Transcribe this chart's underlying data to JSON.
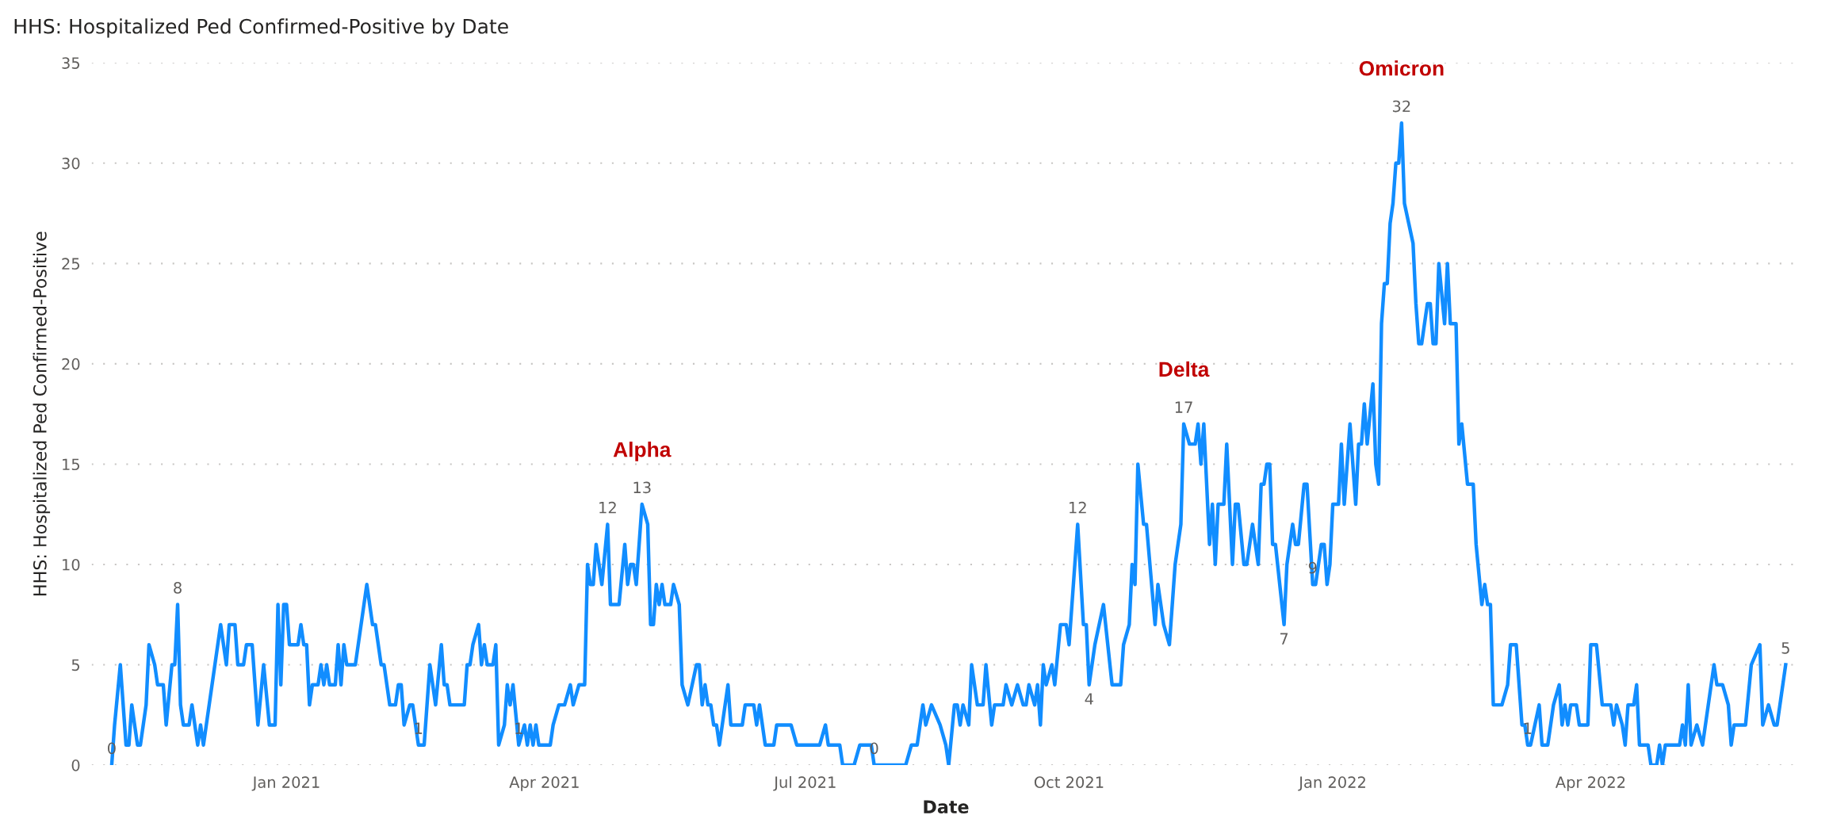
{
  "chart_data": {
    "type": "line",
    "title": "HHS: Hospitalized Ped Confirmed-Positive by Date",
    "xlabel": "Date",
    "ylabel": "HHS: Hospitalized Ped Confirmed-Positive",
    "x": [
      "2020-11-01",
      "2020-11-02",
      "2020-11-04",
      "2020-11-06",
      "2020-11-07",
      "2020-11-08",
      "2020-11-10",
      "2020-11-11",
      "2020-11-13",
      "2020-11-14",
      "2020-11-16",
      "2020-11-17",
      "2020-11-19",
      "2020-11-20",
      "2020-11-22",
      "2020-11-23",
      "2020-11-24",
      "2020-11-25",
      "2020-11-26",
      "2020-11-28",
      "2020-11-29",
      "2020-12-01",
      "2020-12-02",
      "2020-12-03",
      "2020-12-09",
      "2020-12-11",
      "2020-12-12",
      "2020-12-14",
      "2020-12-15",
      "2020-12-17",
      "2020-12-18",
      "2020-12-20",
      "2020-12-22",
      "2020-12-24",
      "2020-12-26",
      "2020-12-28",
      "2020-12-29",
      "2020-12-30",
      "2020-12-31",
      "2021-01-01",
      "2021-01-02",
      "2021-01-05",
      "2021-01-06",
      "2021-01-07",
      "2021-01-08",
      "2021-01-09",
      "2021-01-10",
      "2021-01-12",
      "2021-01-13",
      "2021-01-14",
      "2021-01-15",
      "2021-01-16",
      "2021-01-18",
      "2021-01-19",
      "2021-01-20",
      "2021-01-21",
      "2021-01-22",
      "2021-01-25",
      "2021-01-29",
      "2021-01-31",
      "2021-02-01",
      "2021-02-03",
      "2021-02-04",
      "2021-02-06",
      "2021-02-08",
      "2021-02-09",
      "2021-02-10",
      "2021-02-11",
      "2021-02-13",
      "2021-02-14",
      "2021-02-16",
      "2021-02-18",
      "2021-02-20",
      "2021-02-22",
      "2021-02-24",
      "2021-02-25",
      "2021-02-26",
      "2021-02-27",
      "2021-03-04",
      "2021-03-05",
      "2021-03-06",
      "2021-03-07",
      "2021-03-09",
      "2021-03-10",
      "2021-03-11",
      "2021-03-12",
      "2021-03-14",
      "2021-03-15",
      "2021-03-16",
      "2021-03-18",
      "2021-03-19",
      "2021-03-20",
      "2021-03-21",
      "2021-03-23",
      "2021-03-25",
      "2021-03-26",
      "2021-03-27",
      "2021-03-28",
      "2021-03-29",
      "2021-03-30",
      "2021-04-03",
      "2021-04-04",
      "2021-04-06",
      "2021-04-08",
      "2021-04-10",
      "2021-04-11",
      "2021-04-13",
      "2021-04-15",
      "2021-04-16",
      "2021-04-17",
      "2021-04-18",
      "2021-04-19",
      "2021-04-21",
      "2021-04-23",
      "2021-04-24",
      "2021-04-27",
      "2021-04-29",
      "2021-04-30",
      "2021-05-01",
      "2021-05-02",
      "2021-05-03",
      "2021-05-05",
      "2021-05-07",
      "2021-05-08",
      "2021-05-09",
      "2021-05-10",
      "2021-05-11",
      "2021-05-12",
      "2021-05-13",
      "2021-05-15",
      "2021-05-16",
      "2021-05-18",
      "2021-05-19",
      "2021-05-21",
      "2021-05-24",
      "2021-05-25",
      "2021-05-26",
      "2021-05-27",
      "2021-05-28",
      "2021-05-29",
      "2021-05-30",
      "2021-05-31",
      "2021-06-01",
      "2021-06-04",
      "2021-06-05",
      "2021-06-09",
      "2021-06-10",
      "2021-06-13",
      "2021-06-14",
      "2021-06-15",
      "2021-06-17",
      "2021-06-20",
      "2021-06-21",
      "2021-06-26",
      "2021-06-28",
      "2021-07-06",
      "2021-07-08",
      "2021-07-09",
      "2021-07-13",
      "2021-07-14",
      "2021-07-18",
      "2021-07-20",
      "2021-07-24",
      "2021-07-25",
      "2021-08-05",
      "2021-08-07",
      "2021-08-09",
      "2021-08-11",
      "2021-08-12",
      "2021-08-14",
      "2021-08-17",
      "2021-08-19",
      "2021-08-20",
      "2021-08-22",
      "2021-08-23",
      "2021-08-24",
      "2021-08-25",
      "2021-08-27",
      "2021-08-28",
      "2021-08-30",
      "2021-09-01",
      "2021-09-02",
      "2021-09-04",
      "2021-09-05",
      "2021-09-08",
      "2021-09-09",
      "2021-09-11",
      "2021-09-13",
      "2021-09-15",
      "2021-09-16",
      "2021-09-17",
      "2021-09-19",
      "2021-09-20",
      "2021-09-21",
      "2021-09-22",
      "2021-09-23",
      "2021-09-25",
      "2021-09-26",
      "2021-09-28",
      "2021-09-30",
      "2021-10-01",
      "2021-10-04",
      "2021-10-06",
      "2021-10-07",
      "2021-10-08",
      "2021-10-10",
      "2021-10-13",
      "2021-10-16",
      "2021-10-19",
      "2021-10-20",
      "2021-10-22",
      "2021-10-23",
      "2021-10-24",
      "2021-10-25",
      "2021-10-27",
      "2021-10-28",
      "2021-10-31",
      "2021-11-01",
      "2021-11-03",
      "2021-11-05",
      "2021-11-07",
      "2021-11-09",
      "2021-11-10",
      "2021-11-12",
      "2021-11-14",
      "2021-11-15",
      "2021-11-16",
      "2021-11-17",
      "2021-11-19",
      "2021-11-20",
      "2021-11-21",
      "2021-11-22",
      "2021-11-24",
      "2021-11-25",
      "2021-11-27",
      "2021-11-28",
      "2021-11-29",
      "2021-12-01",
      "2021-12-02",
      "2021-12-04",
      "2021-12-06",
      "2021-12-07",
      "2021-12-08",
      "2021-12-09",
      "2021-12-10",
      "2021-12-11",
      "2021-12-12",
      "2021-12-15",
      "2021-12-16",
      "2021-12-18",
      "2021-12-19",
      "2021-12-20",
      "2021-12-22",
      "2021-12-23",
      "2021-12-25",
      "2021-12-26",
      "2021-12-28",
      "2021-12-29",
      "2021-12-30",
      "2021-12-31",
      "2022-01-01",
      "2022-01-02",
      "2022-01-03",
      "2022-01-04",
      "2022-01-05",
      "2022-01-07",
      "2022-01-09",
      "2022-01-10",
      "2022-01-11",
      "2022-01-12",
      "2022-01-13",
      "2022-01-15",
      "2022-01-16",
      "2022-01-17",
      "2022-01-18",
      "2022-01-19",
      "2022-01-20",
      "2022-01-21",
      "2022-01-22",
      "2022-01-23",
      "2022-01-24",
      "2022-01-25",
      "2022-01-26",
      "2022-01-29",
      "2022-01-30",
      "2022-01-31",
      "2022-02-01",
      "2022-02-03",
      "2022-02-04",
      "2022-02-05",
      "2022-02-06",
      "2022-02-07",
      "2022-02-09",
      "2022-02-10",
      "2022-02-11",
      "2022-02-13",
      "2022-02-14",
      "2022-02-15",
      "2022-02-17",
      "2022-02-19",
      "2022-02-20",
      "2022-02-22",
      "2022-02-23",
      "2022-02-24",
      "2022-02-25",
      "2022-02-26",
      "2022-03-01",
      "2022-03-03",
      "2022-03-04",
      "2022-03-06",
      "2022-03-08",
      "2022-03-09",
      "2022-03-10",
      "2022-03-11",
      "2022-03-14",
      "2022-03-15",
      "2022-03-17",
      "2022-03-19",
      "2022-03-21",
      "2022-03-22",
      "2022-03-23",
      "2022-03-24",
      "2022-03-25",
      "2022-03-27",
      "2022-03-28",
      "2022-03-31",
      "2022-04-01",
      "2022-04-03",
      "2022-04-05",
      "2022-04-08",
      "2022-04-09",
      "2022-04-10",
      "2022-04-12",
      "2022-04-13",
      "2022-04-14",
      "2022-04-16",
      "2022-04-17",
      "2022-04-18",
      "2022-04-21",
      "2022-04-22",
      "2022-04-24",
      "2022-04-25",
      "2022-04-26",
      "2022-04-27",
      "2022-05-02",
      "2022-05-03",
      "2022-05-04",
      "2022-05-05",
      "2022-05-06",
      "2022-05-08",
      "2022-05-10",
      "2022-05-14",
      "2022-05-15",
      "2022-05-17",
      "2022-05-19",
      "2022-05-20",
      "2022-05-21",
      "2022-05-25",
      "2022-05-27",
      "2022-05-30",
      "2022-05-31",
      "2022-06-02",
      "2022-06-04",
      "2022-06-05",
      "2022-06-08"
    ],
    "series": [
      {
        "color": "#118dff",
        "values": [
          0,
          2,
          5,
          1,
          1,
          3,
          1,
          1,
          3,
          6,
          5,
          4,
          4,
          2,
          5,
          5,
          8,
          3,
          2,
          2,
          3,
          1,
          2,
          1,
          7,
          5,
          7,
          7,
          5,
          5,
          6,
          6,
          2,
          5,
          2,
          2,
          8,
          4,
          8,
          8,
          6,
          6,
          7,
          6,
          6,
          3,
          4,
          4,
          5,
          4,
          5,
          4,
          4,
          6,
          4,
          6,
          5,
          5,
          9,
          7,
          7,
          5,
          5,
          3,
          3,
          4,
          4,
          2,
          3,
          3,
          1,
          1,
          5,
          3,
          6,
          4,
          4,
          3,
          3,
          5,
          5,
          6,
          7,
          5,
          6,
          5,
          5,
          6,
          1,
          2,
          4,
          3,
          4,
          1,
          2,
          1,
          2,
          1,
          2,
          1,
          1,
          2,
          3,
          3,
          4,
          3,
          4,
          4,
          10,
          9,
          9,
          11,
          9,
          12,
          8,
          8,
          11,
          9,
          10,
          10,
          9,
          13,
          12,
          7,
          7,
          9,
          8,
          9,
          8,
          8,
          9,
          8,
          4,
          3,
          5,
          5,
          3,
          4,
          3,
          3,
          2,
          2,
          1,
          4,
          2,
          2,
          3,
          3,
          2,
          3,
          1,
          1,
          2,
          2,
          1,
          1,
          2,
          1,
          1,
          0,
          0,
          1,
          1,
          0,
          0,
          1,
          1,
          3,
          2,
          3,
          2,
          1,
          0,
          3,
          3,
          2,
          3,
          2,
          5,
          3,
          3,
          5,
          2,
          3,
          3,
          4,
          3,
          4,
          3,
          3,
          4,
          3,
          4,
          2,
          5,
          4,
          5,
          4,
          7,
          7,
          6,
          12,
          7,
          7,
          4,
          6,
          8,
          4,
          4,
          6,
          7,
          10,
          9,
          15,
          12,
          12,
          7,
          9,
          7,
          6,
          10,
          12,
          17,
          16,
          16,
          17,
          15,
          17,
          11,
          13,
          10,
          13,
          13,
          16,
          10,
          13,
          13,
          10,
          10,
          12,
          10,
          14,
          14,
          15,
          15,
          11,
          11,
          7,
          10,
          12,
          11,
          11,
          14,
          14,
          9,
          9,
          11,
          11,
          9,
          10,
          13,
          13,
          13,
          16,
          13,
          17,
          13,
          16,
          16,
          18,
          16,
          19,
          15,
          14,
          22,
          24,
          24,
          27,
          28,
          30,
          30,
          32,
          28,
          26,
          23,
          21,
          21,
          23,
          23,
          21,
          21,
          25,
          22,
          25,
          22,
          22,
          16,
          17,
          14,
          14,
          11,
          8,
          9,
          8,
          8,
          3,
          3,
          4,
          6,
          6,
          2,
          2,
          1,
          1,
          3,
          1,
          1,
          3,
          4,
          2,
          3,
          2,
          3,
          3,
          2,
          2,
          6,
          6,
          3,
          3,
          2,
          3,
          2,
          1,
          3,
          3,
          4,
          1,
          1,
          0,
          0,
          1,
          0,
          1,
          1,
          2,
          1,
          4,
          1,
          2,
          1,
          5,
          4,
          4,
          3,
          1,
          2,
          2,
          5,
          6,
          2,
          3,
          2,
          2,
          5
        ],
        "value_labels": [
          "0",
          null,
          null,
          null,
          null,
          null,
          null,
          null,
          null,
          null,
          null,
          null,
          null,
          null,
          null,
          null,
          "8",
          null,
          null,
          null,
          null,
          null,
          null,
          null,
          null,
          null,
          null,
          null,
          null,
          null,
          null,
          null,
          null,
          null,
          null,
          null,
          null,
          null,
          null,
          null,
          null,
          null,
          null,
          null,
          null,
          null,
          null,
          null,
          null,
          null,
          null,
          null,
          null,
          null,
          null,
          null,
          null,
          null,
          null,
          null,
          null,
          null,
          null,
          null,
          null,
          null,
          null,
          null,
          null,
          null,
          "1",
          null,
          null,
          null,
          null,
          null,
          null,
          null,
          null,
          null,
          null,
          null,
          null,
          null,
          null,
          null,
          null,
          null,
          null,
          null,
          null,
          null,
          null,
          "1",
          null,
          null,
          null,
          null,
          null,
          null,
          null,
          null,
          null,
          null,
          null,
          null,
          null,
          null,
          null,
          null,
          null,
          null,
          null,
          "12",
          null,
          null,
          null,
          null,
          null,
          null,
          null,
          "13",
          null,
          null,
          null,
          null,
          null,
          null,
          null,
          null,
          null,
          null,
          null,
          null,
          null,
          null,
          null,
          null,
          null,
          null,
          null,
          null,
          null,
          null,
          null,
          null,
          null,
          null,
          null,
          null,
          null,
          null,
          null,
          null,
          null,
          null,
          null,
          null,
          null,
          null,
          null,
          null,
          null,
          "0",
          null,
          null,
          null,
          null,
          null,
          null,
          null,
          null,
          null,
          null,
          null,
          null,
          null,
          null,
          null,
          null,
          null,
          null,
          null,
          null,
          null,
          null,
          null,
          null,
          null,
          null,
          null,
          null,
          null,
          null,
          null,
          null,
          null,
          null,
          null,
          null,
          null,
          "12",
          null,
          null,
          "4",
          null,
          null,
          null,
          null,
          null,
          null,
          null,
          null,
          null,
          null,
          null,
          null,
          null,
          null,
          null,
          null,
          null,
          "17",
          null,
          null,
          null,
          null,
          null,
          null,
          null,
          null,
          null,
          null,
          null,
          null,
          null,
          null,
          null,
          null,
          null,
          null,
          null,
          null,
          null,
          null,
          null,
          null,
          "7",
          null,
          null,
          null,
          null,
          null,
          null,
          "9",
          null,
          null,
          null,
          null,
          null,
          null,
          null,
          null,
          null,
          null,
          null,
          null,
          null,
          null,
          null,
          null,
          null,
          null,
          null,
          null,
          null,
          null,
          null,
          null,
          null,
          null,
          "32",
          null,
          null,
          null,
          null,
          null,
          null,
          null,
          null,
          null,
          null,
          null,
          null,
          null,
          null,
          null,
          null,
          null,
          null,
          null,
          null,
          null,
          null,
          null,
          null,
          null,
          null,
          null,
          null,
          null,
          null,
          "1",
          null,
          null,
          null,
          null,
          null,
          null,
          null,
          null,
          null,
          null,
          null,
          null,
          null,
          null,
          null,
          null,
          null,
          null,
          null,
          null,
          null,
          null,
          null,
          null,
          null,
          null,
          null,
          null,
          null,
          null,
          null,
          null,
          null,
          null,
          null,
          null,
          null,
          null,
          null,
          null,
          null,
          null,
          null,
          null,
          null,
          null,
          null,
          null,
          null,
          null,
          null,
          "5"
        ]
      }
    ],
    "annotations": [
      {
        "text": "Alpha",
        "x": "2021-05-05",
        "y": 13
      },
      {
        "text": "Delta",
        "x": "2021-11-10",
        "y": 17
      },
      {
        "text": "Omicron",
        "x": "2022-01-25",
        "y": 32
      }
    ],
    "xlim": [
      "2020-10-25",
      "2022-06-13"
    ],
    "xticks": [
      {
        "value": "2021-01-01",
        "label": "Jan 2021"
      },
      {
        "value": "2021-04-01",
        "label": "Apr 2021"
      },
      {
        "value": "2021-07-01",
        "label": "Jul 2021"
      },
      {
        "value": "2021-10-01",
        "label": "Oct 2021"
      },
      {
        "value": "2022-01-01",
        "label": "Jan 2022"
      },
      {
        "value": "2022-04-01",
        "label": "Apr 2022"
      }
    ],
    "ylim": [
      0,
      35
    ],
    "yticks": [
      0,
      5,
      10,
      15,
      20,
      25,
      30,
      35
    ],
    "grid": "y",
    "line_style": "solid",
    "legend": false
  }
}
